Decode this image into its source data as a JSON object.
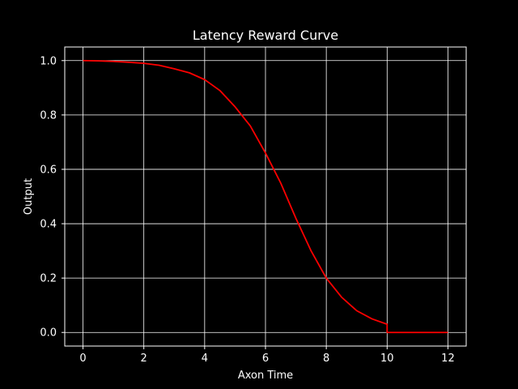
{
  "chart_data": {
    "type": "line",
    "title": "Latency Reward Curve",
    "xlabel": "Axon Time",
    "ylabel": "Output",
    "xlim": [
      -0.6,
      12.6
    ],
    "ylim": [
      -0.05,
      1.05
    ],
    "xticks": [
      0,
      2,
      4,
      6,
      8,
      10,
      12
    ],
    "xtick_labels": [
      "0",
      "2",
      "4",
      "6",
      "8",
      "10",
      "12"
    ],
    "yticks": [
      0.0,
      0.2,
      0.4,
      0.6,
      0.8,
      1.0
    ],
    "ytick_labels": [
      "0.0",
      "0.2",
      "0.4",
      "0.6",
      "0.8",
      "1.0"
    ],
    "grid": true,
    "background": "#000000",
    "foreground": "#ffffff",
    "series": [
      {
        "color": "#ff0000",
        "x": [
          0,
          0.5,
          1,
          1.5,
          2,
          2.5,
          3,
          3.5,
          4,
          4.5,
          5,
          5.5,
          6,
          6.5,
          7,
          7.5,
          8,
          8.5,
          9,
          9.5,
          10,
          10,
          10.5,
          11,
          11.5,
          12
        ],
        "y": [
          1.0,
          0.999,
          0.997,
          0.994,
          0.99,
          0.983,
          0.97,
          0.955,
          0.93,
          0.89,
          0.83,
          0.76,
          0.66,
          0.55,
          0.42,
          0.3,
          0.2,
          0.13,
          0.08,
          0.05,
          0.03,
          0.0,
          0.0,
          0.0,
          0.0,
          0.0
        ]
      }
    ]
  }
}
